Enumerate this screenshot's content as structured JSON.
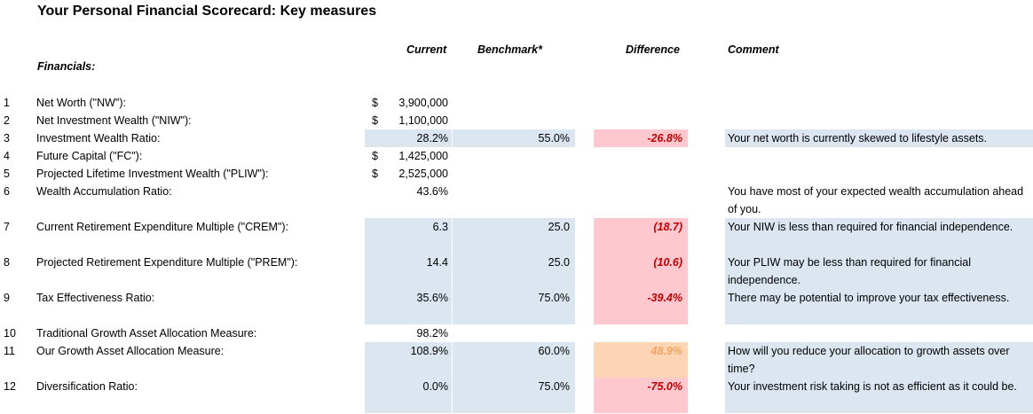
{
  "title": "Your Personal Financial Scorecard: Key measures",
  "headers": {
    "current": "Current",
    "benchmark": "Benchmark*",
    "difference": "Difference",
    "comment": "Comment"
  },
  "section_label": "Financials:",
  "rows": [
    {
      "num": "1",
      "label": "Net Worth (\"NW\"):",
      "dollar": "$",
      "current": "3,900,000",
      "benchmark": "",
      "difference": "",
      "comment": ""
    },
    {
      "num": "2",
      "label": "Net Investment Wealth (\"NIW\"):",
      "dollar": "$",
      "current": "1,100,000",
      "benchmark": "",
      "difference": "",
      "comment": ""
    },
    {
      "num": "3",
      "label": "Investment Wealth Ratio:",
      "dollar": "",
      "current": "28.2%",
      "benchmark": "55.0%",
      "difference": "-26.8%",
      "comment": "Your net worth is currently skewed to lifestyle assets."
    },
    {
      "num": "4",
      "label": "Future Capital (\"FC\"):",
      "dollar": "$",
      "current": "1,425,000",
      "benchmark": "",
      "difference": "",
      "comment": ""
    },
    {
      "num": "5",
      "label": "Projected Lifetime Investment Wealth (\"PLIW\"):",
      "dollar": "$",
      "current": "2,525,000",
      "benchmark": "",
      "difference": "",
      "comment": ""
    },
    {
      "num": "6",
      "label": "Wealth Accumulation Ratio:",
      "dollar": "",
      "current": "43.6%",
      "benchmark": "",
      "difference": "",
      "comment": "You have most of your expected wealth accumulation ahead of you."
    },
    {
      "num": "7",
      "label": "Current Retirement Expenditure Multiple (\"CREM\"):",
      "dollar": "",
      "current": "6.3",
      "benchmark": "25.0",
      "difference": "(18.7)",
      "comment": "Your NIW is less than required for financial independence."
    },
    {
      "num": "8",
      "label": "Projected Retirement Expenditure Multiple (\"PREM\"):",
      "dollar": "",
      "current": "14.4",
      "benchmark": "25.0",
      "difference": "(10.6)",
      "comment": "Your PLIW may be less than required for financial independence."
    },
    {
      "num": "9",
      "label": "Tax Effectiveness Ratio:",
      "dollar": "",
      "current": "35.6%",
      "benchmark": "75.0%",
      "difference": "-39.4%",
      "comment": "There may be potential to improve your tax effectiveness."
    },
    {
      "num": "10",
      "label": "Traditional Growth Asset Allocation Measure:",
      "dollar": "",
      "current": "98.2%",
      "benchmark": "",
      "difference": "",
      "comment": ""
    },
    {
      "num": "11",
      "label": "Our Growth Asset Allocation Measure:",
      "dollar": "",
      "current": "108.9%",
      "benchmark": "60.0%",
      "difference": "48.9%",
      "comment": "How will you reduce your allocation to growth assets over time?"
    },
    {
      "num": "12",
      "label": "Diversification Ratio:",
      "dollar": "",
      "current": "0.0%",
      "benchmark": "75.0%",
      "difference": "-75.0%",
      "comment": "Your investment risk taking is not as efficient as it could be."
    }
  ],
  "colors": {
    "blue_fill": "#dce6f1",
    "pink_fill": "#ffc7ce",
    "peach_fill": "#fcd5b4",
    "red_text": "#c00000",
    "orange_text": "#f4a460"
  }
}
